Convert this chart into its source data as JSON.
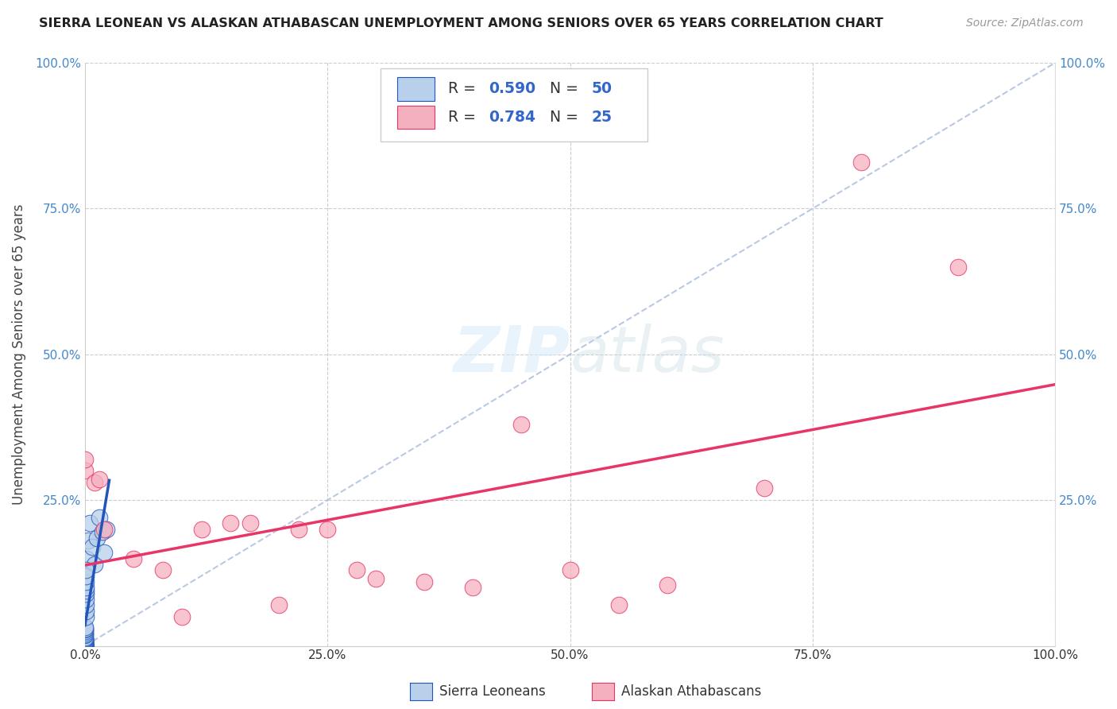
{
  "title": "SIERRA LEONEAN VS ALASKAN ATHABASCAN UNEMPLOYMENT AMONG SENIORS OVER 65 YEARS CORRELATION CHART",
  "source": "Source: ZipAtlas.com",
  "ylabel": "Unemployment Among Seniors over 65 years",
  "r_blue": 0.59,
  "n_blue": 50,
  "r_pink": 0.784,
  "n_pink": 25,
  "blue_color": "#b8d0ea",
  "pink_color": "#f5b0c0",
  "blue_line_color": "#2255bb",
  "pink_line_color": "#e83565",
  "diag_color": "#aabbdd",
  "legend_label_blue": "Sierra Leoneans",
  "legend_label_pink": "Alaskan Athabascans",
  "blue_scatter_x": [
    0.0,
    0.0,
    0.0,
    0.0,
    0.0,
    0.0,
    0.0,
    0.0,
    0.0,
    0.0,
    0.0,
    0.0,
    0.0,
    0.0,
    0.0,
    0.0,
    0.0,
    0.0,
    0.0,
    0.0,
    0.0,
    0.0,
    0.0,
    0.0,
    0.0,
    0.0,
    0.0,
    0.0,
    0.0,
    0.0,
    0.002,
    0.003,
    0.005,
    0.007,
    0.01,
    0.012,
    0.015,
    0.018,
    0.02,
    0.022,
    0.001,
    0.001,
    0.001,
    0.001,
    0.001,
    0.001,
    0.001,
    0.001,
    0.001,
    0.001
  ],
  "blue_scatter_y": [
    0.0,
    0.0,
    0.0,
    0.0,
    0.0,
    0.001,
    0.001,
    0.001,
    0.002,
    0.002,
    0.003,
    0.003,
    0.004,
    0.005,
    0.005,
    0.006,
    0.007,
    0.008,
    0.01,
    0.01,
    0.012,
    0.013,
    0.015,
    0.018,
    0.02,
    0.022,
    0.025,
    0.028,
    0.03,
    0.032,
    0.15,
    0.18,
    0.21,
    0.17,
    0.14,
    0.185,
    0.22,
    0.195,
    0.16,
    0.2,
    0.05,
    0.06,
    0.07,
    0.08,
    0.09,
    0.095,
    0.1,
    0.11,
    0.12,
    0.13
  ],
  "pink_scatter_x": [
    0.0,
    0.0,
    0.01,
    0.015,
    0.02,
    0.05,
    0.08,
    0.1,
    0.12,
    0.15,
    0.17,
    0.2,
    0.22,
    0.25,
    0.28,
    0.3,
    0.35,
    0.4,
    0.45,
    0.5,
    0.55,
    0.6,
    0.7,
    0.8,
    0.9
  ],
  "pink_scatter_y": [
    0.3,
    0.32,
    0.28,
    0.285,
    0.2,
    0.15,
    0.13,
    0.05,
    0.2,
    0.21,
    0.21,
    0.07,
    0.2,
    0.2,
    0.13,
    0.115,
    0.11,
    0.1,
    0.38,
    0.13,
    0.07,
    0.105,
    0.27,
    0.83,
    0.65
  ],
  "xlim": [
    0,
    1.0
  ],
  "ylim": [
    0,
    1.0
  ],
  "xticks": [
    0.0,
    0.25,
    0.5,
    0.75,
    1.0
  ],
  "yticks": [
    0.0,
    0.25,
    0.5,
    0.75,
    1.0
  ],
  "xticklabels": [
    "0.0%",
    "25.0%",
    "50.0%",
    "75.0%",
    "100.0%"
  ],
  "yticklabels_left": [
    "",
    "25.0%",
    "50.0%",
    "75.0%",
    "100.0%"
  ],
  "yticklabels_right": [
    "",
    "25.0%",
    "50.0%",
    "75.0%",
    "100.0%"
  ],
  "watermark_zip": "ZIP",
  "watermark_atlas": "atlas",
  "background_color": "#ffffff",
  "grid_color": "#cccccc"
}
